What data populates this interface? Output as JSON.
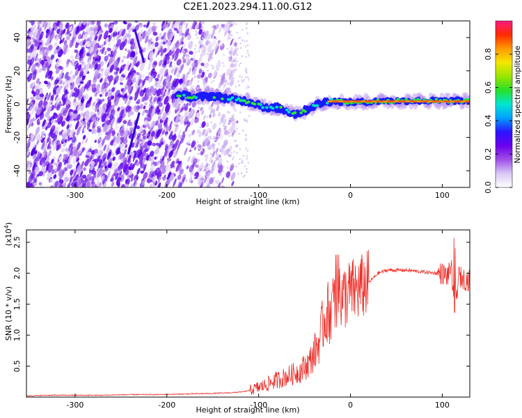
{
  "title": "C2E1.2023.294.11.00.G12",
  "chart_data": [
    {
      "type": "heatmap",
      "xlabel": "Height of straight line (km)",
      "ylabel": "Frequency (Hz)",
      "xlim": [
        -353,
        130
      ],
      "ylim": [
        -50,
        50
      ],
      "xticks": [
        -300,
        -200,
        -100,
        0,
        100
      ],
      "yticks": [
        -40,
        -20,
        0,
        20,
        40
      ],
      "colorbar": {
        "label": "Normalized spectral amplitude",
        "range": [
          0,
          1
        ],
        "ticks": [
          0.0,
          0.2,
          0.4,
          0.6,
          0.8
        ],
        "colors": [
          "#ffffff",
          "#d9c8f5",
          "#a050e8",
          "#6a00ee",
          "#2a14ff",
          "#00a0ff",
          "#00e6d0",
          "#28e028",
          "#9ae600",
          "#f5e600",
          "#ff9a00",
          "#ff2a00",
          "#ff1a80"
        ]
      },
      "signal_trace": [
        {
          "x": -190,
          "y": 6
        },
        {
          "x": -170,
          "y": 4
        },
        {
          "x": -150,
          "y": 5
        },
        {
          "x": -130,
          "y": 3
        },
        {
          "x": -115,
          "y": 2
        },
        {
          "x": -100,
          "y": 0
        },
        {
          "x": -90,
          "y": -3
        },
        {
          "x": -80,
          "y": -2
        },
        {
          "x": -70,
          "y": -4
        },
        {
          "x": -60,
          "y": -6
        },
        {
          "x": -50,
          "y": -4
        },
        {
          "x": -40,
          "y": -1
        },
        {
          "x": -30,
          "y": 1
        },
        {
          "x": -20,
          "y": 2
        },
        {
          "x": 0,
          "y": 1
        },
        {
          "x": 40,
          "y": 2
        },
        {
          "x": 80,
          "y": 2
        },
        {
          "x": 110,
          "y": 2
        },
        {
          "x": 130,
          "y": 2
        }
      ]
    },
    {
      "type": "line",
      "xlabel": "Height of straight line (km)",
      "ylabel": "SNR (10 * v/v)",
      "yscale_note": "(x10",
      "yscale_exp": "4",
      "yscale_close": ")",
      "xlim": [
        -353,
        130
      ],
      "ylim": [
        0,
        2.7
      ],
      "xticks": [
        -300,
        -200,
        -100,
        0,
        100
      ],
      "yticks": [
        0.5,
        1.0,
        1.5,
        2.0,
        2.5
      ],
      "series": [
        {
          "color": "#ee2a24",
          "x": [
            -353,
            -330,
            -300,
            -270,
            -240,
            -210,
            -180,
            -150,
            -130,
            -115,
            -105,
            -95,
            -85,
            -75,
            -65,
            -55,
            -45,
            -35,
            -28,
            -22,
            -15,
            -8,
            0,
            10,
            20,
            30,
            40,
            60,
            80,
            95,
            100,
            105,
            110,
            113,
            118,
            125,
            130
          ],
          "y": [
            0.02,
            0.03,
            0.03,
            0.03,
            0.04,
            0.04,
            0.05,
            0.06,
            0.07,
            0.09,
            0.13,
            0.18,
            0.25,
            0.3,
            0.36,
            0.42,
            0.55,
            0.85,
            1.3,
            1.4,
            1.5,
            1.6,
            1.7,
            1.75,
            1.85,
            2.0,
            2.05,
            2.05,
            2.02,
            2.0,
            2.0,
            1.95,
            2.05,
            1.4,
            1.95,
            1.9,
            1.88
          ]
        }
      ]
    }
  ]
}
